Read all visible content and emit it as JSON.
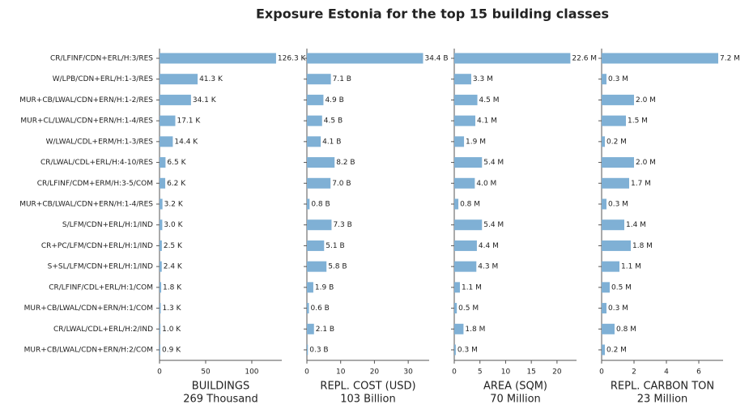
{
  "title": "Exposure Estonia for the top 15 building classes",
  "chart_data": [
    {
      "type": "barh",
      "color": "#7fb0d5",
      "categories": [
        "CR/LFINF/CDN+ERL/H:3/RES",
        "W/LPB/CDN+ERL/H:1-3/RES",
        "MUR+CB/LWAL/CDN+ERN/H:1-2/RES",
        "MUR+CL/LWAL/CDN+ERN/H:1-4/RES",
        "W/LWAL/CDL+ERM/H:1-3/RES",
        "CR/LWAL/CDL+ERL/H:4-10/RES",
        "CR/LFINF/CDM+ERM/H:3-5/COM",
        "MUR+CB/LWAL/CDN+ERN/H:1-4/RES",
        "S/LFM/CDN+ERL/H:1/IND",
        "CR+PC/LFM/CDN+ERL/H:1/IND",
        "S+SL/LFM/CDN+ERL/H:1/IND",
        "CR/LFINF/CDL+ERL/H:1/COM",
        "MUR+CB/LWAL/CDN+ERN/H:1/COM",
        "CR/LWAL/CDL+ERL/H:2/IND",
        "MUR+CB/LWAL/CDN+ERN/H:2/COM"
      ],
      "values": [
        126.3,
        41.3,
        34.1,
        17.1,
        14.4,
        6.5,
        6.2,
        3.2,
        3.0,
        2.5,
        2.4,
        1.8,
        1.3,
        1.0,
        0.9
      ],
      "value_labels": [
        "126.3 K",
        "41.3 K",
        "34.1 K",
        "17.1 K",
        "14.4 K",
        "6.5 K",
        "6.2 K",
        "3.2 K",
        "3.0 K",
        "2.5 K",
        "2.4 K",
        "1.8 K",
        "1.3 K",
        "1.0 K",
        "0.9 K"
      ],
      "xlim": [
        0,
        132.5
      ],
      "xticks": [
        0,
        50,
        100
      ],
      "xlabel": "BUILDINGS",
      "xlabel_total": "269 Thousand"
    },
    {
      "type": "barh",
      "color": "#7fb0d5",
      "values": [
        34.4,
        7.1,
        4.9,
        4.5,
        4.1,
        8.2,
        7.0,
        0.8,
        7.3,
        5.1,
        5.8,
        1.9,
        0.6,
        2.1,
        0.3
      ],
      "value_labels": [
        "34.4 B",
        "7.1 B",
        "4.9 B",
        "4.5 B",
        "4.1 B",
        "8.2 B",
        "7.0 B",
        "0.8 B",
        "7.3 B",
        "5.1 B",
        "5.8 B",
        "1.9 B",
        "0.6 B",
        "2.1 B",
        "0.3 B"
      ],
      "xlim": [
        0,
        36.2
      ],
      "xticks": [
        0,
        10,
        20,
        30
      ],
      "xlabel": "REPL. COST (USD)",
      "xlabel_total": "103 Billion"
    },
    {
      "type": "barh",
      "color": "#7fb0d5",
      "values": [
        22.6,
        3.3,
        4.5,
        4.1,
        1.9,
        5.4,
        4.0,
        0.8,
        5.4,
        4.4,
        4.3,
        1.1,
        0.5,
        1.8,
        0.3
      ],
      "value_labels": [
        "22.6 M",
        "3.3 M",
        "4.5 M",
        "4.1 M",
        "1.9 M",
        "5.4 M",
        "4.0 M",
        "0.8 M",
        "5.4 M",
        "4.4 M",
        "4.3 M",
        "1.1 M",
        "0.5 M",
        "1.8 M",
        "0.3 M"
      ],
      "xlim": [
        0,
        23.8
      ],
      "xticks": [
        0,
        5,
        10,
        15,
        20
      ],
      "xlabel": "AREA (SQM)",
      "xlabel_total": "70 Million"
    },
    {
      "type": "barh",
      "color": "#7fb0d5",
      "values": [
        7.2,
        0.3,
        2.0,
        1.5,
        0.2,
        2.0,
        1.7,
        0.3,
        1.4,
        1.8,
        1.1,
        0.5,
        0.3,
        0.8,
        0.2
      ],
      "value_labels": [
        "7.2 M",
        "0.3 M",
        "2.0 M",
        "1.5 M",
        "0.2 M",
        "2.0 M",
        "1.7 M",
        "0.3 M",
        "1.4 M",
        "1.8 M",
        "1.1 M",
        "0.5 M",
        "0.3 M",
        "0.8 M",
        "0.2 M"
      ],
      "xlim": [
        0,
        7.5
      ],
      "xticks": [
        0,
        2,
        4,
        6
      ],
      "xlabel": "REPL. CARBON TON",
      "xlabel_total": "23 Million"
    }
  ]
}
